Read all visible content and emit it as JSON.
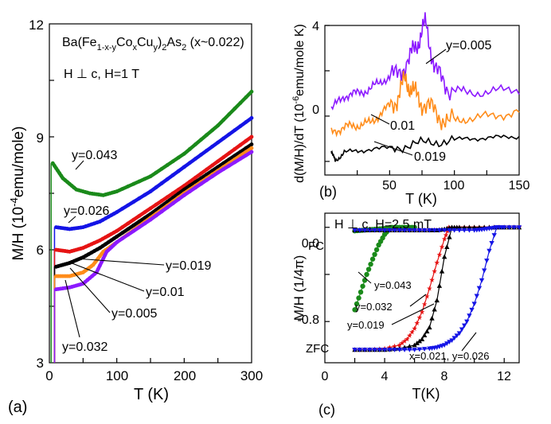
{
  "colors": {
    "green": "#1a8a1a",
    "blue": "#1414e6",
    "red": "#e61414",
    "black": "#000000",
    "orange": "#ff8c1a",
    "purple": "#8c1aff"
  },
  "panel_a": {
    "tag": "(a)",
    "title_text": {
      "base": "Ba(Fe",
      "sub1": "1-x-y",
      "co": "Co",
      "sub2": "x",
      "cu": "Cu",
      "sub3": "y",
      "tail": ")",
      "sub4": "2",
      "as": "As",
      "sub5": "2",
      "rest": " (x~0.022)"
    },
    "field_text": "H ⊥ c, H=1 T",
    "xlabel": "T (K)",
    "ylabel": {
      "pre": "M/H  (10",
      "sup": "-4",
      "post": "emu/mole)"
    },
    "labels": [
      "y=0.043",
      "y=0.026",
      "y=0.019",
      "y=0.01",
      "y=0.005",
      "y=0.032"
    ]
  },
  "panel_b": {
    "tag": "(b)",
    "xlabel": "T (K)",
    "ylabel": {
      "pre": "d(M/H)/dT  (10",
      "sup": "-6",
      "post": "emu/mole K)"
    },
    "labels": [
      "y=0.005",
      "0.01",
      "0.019"
    ]
  },
  "panel_c": {
    "tag": "(c)",
    "title": "H ⊥ c, H=2.5 mT",
    "xlabel": "T(K)",
    "ylabel": "M/H  (1/4π)",
    "fc": "FC",
    "zfc": "ZFC",
    "labels": [
      "y=0.043",
      "y=0.032",
      "y=0.019",
      "x=0.021, y=0.026"
    ]
  },
  "chart_data": [
    {
      "type": "line",
      "xlabel": "T (K)",
      "ylabel": "M/H (10^-4 emu/mole)",
      "xlim": [
        0,
        300
      ],
      "ylim": [
        3,
        12
      ],
      "xticks": [
        0,
        100,
        200,
        300
      ],
      "yticks": [
        3,
        6,
        9,
        12
      ],
      "series": [
        {
          "name": "y=0.043",
          "color": "green",
          "x": [
            5,
            20,
            40,
            60,
            80,
            100,
            150,
            200,
            250,
            300
          ],
          "y": [
            8.3,
            7.9,
            7.6,
            7.5,
            7.45,
            7.55,
            7.95,
            8.55,
            9.3,
            10.2
          ]
        },
        {
          "name": "y=0.026",
          "color": "blue",
          "x": [
            10,
            30,
            50,
            75,
            100,
            150,
            200,
            250,
            300
          ],
          "y": [
            6.6,
            6.55,
            6.6,
            6.75,
            7.0,
            7.55,
            8.2,
            8.85,
            9.5
          ]
        },
        {
          "name": "y=0.01",
          "color": "red",
          "x": [
            10,
            30,
            50,
            75,
            100,
            150,
            200,
            250,
            300
          ],
          "y": [
            6.0,
            5.95,
            6.05,
            6.25,
            6.5,
            7.1,
            7.7,
            8.35,
            9.0
          ]
        },
        {
          "name": "y=0.019",
          "color": "black",
          "x": [
            10,
            30,
            50,
            75,
            100,
            150,
            200,
            250,
            300
          ],
          "y": [
            5.55,
            5.65,
            5.8,
            6.05,
            6.35,
            6.95,
            7.6,
            8.2,
            8.8
          ]
        },
        {
          "name": "y=0.005",
          "color": "orange",
          "x": [
            10,
            30,
            50,
            65,
            80,
            100,
            150,
            200,
            250,
            300
          ],
          "y": [
            5.3,
            5.3,
            5.4,
            5.6,
            5.95,
            6.2,
            6.85,
            7.5,
            8.1,
            8.7
          ]
        },
        {
          "name": "y=0.032",
          "color": "purple",
          "x": [
            10,
            30,
            50,
            70,
            85,
            100,
            150,
            200,
            250,
            300
          ],
          "y": [
            4.95,
            5.0,
            5.1,
            5.4,
            5.95,
            6.2,
            6.8,
            7.45,
            8.05,
            8.6
          ]
        }
      ]
    },
    {
      "type": "line",
      "xlabel": "T (K)",
      "ylabel": "d(M/H)/dT (10^-6 emu/mole K)",
      "xlim": [
        0,
        150
      ],
      "ylim": [
        -2.6,
        4
      ],
      "xticks": [
        50,
        100,
        150
      ],
      "yticks": [
        0,
        4
      ],
      "series": [
        {
          "name": "y=0.005",
          "color": "purple",
          "x": [
            5,
            15,
            25,
            35,
            45,
            55,
            65,
            72,
            78,
            85,
            95,
            110,
            130,
            150
          ],
          "y": [
            0.3,
            0.9,
            1.0,
            1.2,
            1.6,
            1.8,
            2.5,
            3.3,
            4.1,
            2.0,
            1.3,
            1.0,
            1.1,
            1.2
          ]
        },
        {
          "name": "0.01",
          "color": "orange",
          "x": [
            5,
            15,
            25,
            35,
            45,
            55,
            62,
            68,
            75,
            85,
            95,
            110,
            130,
            150
          ],
          "y": [
            -0.7,
            -0.5,
            -0.4,
            -0.3,
            0.2,
            0.7,
            1.6,
            1.1,
            0.6,
            0.2,
            -0.3,
            -0.1,
            0.0,
            0.2
          ]
        },
        {
          "name": "0.019",
          "color": "black",
          "x": [
            5,
            8,
            15,
            30,
            50,
            70,
            90,
            110,
            130,
            150
          ],
          "y": [
            -1.5,
            -2.0,
            -1.6,
            -1.5,
            -1.4,
            -1.25,
            -1.1,
            -1.0,
            -0.95,
            -0.9
          ]
        }
      ]
    },
    {
      "type": "scatter",
      "xlabel": "T(K)",
      "ylabel": "M/H (1/4π)",
      "xlim": [
        0,
        13
      ],
      "ylim": [
        -1.15,
        0.12
      ],
      "xticks": [
        0,
        4,
        8,
        12
      ],
      "yticks": [
        0.0,
        -0.8
      ],
      "series": [
        {
          "name": "FC y=0.043",
          "color": "green",
          "marker": "circle",
          "x": [
            2,
            2.5,
            3,
            3.5,
            4,
            4.5,
            5,
            5.5,
            6
          ],
          "y": [
            -0.03,
            -0.025,
            -0.02,
            -0.015,
            -0.01,
            0.0,
            0.0,
            0.0,
            0.0
          ]
        },
        {
          "name": "ZFC y=0.043",
          "color": "green",
          "marker": "circle",
          "x": [
            2,
            2.4,
            2.8,
            3.2,
            3.6,
            4.0,
            4.4
          ],
          "y": [
            -0.7,
            -0.55,
            -0.4,
            -0.27,
            -0.15,
            -0.06,
            0.0
          ]
        },
        {
          "name": "FC y=0.032",
          "color": "red",
          "marker": "star",
          "x": [
            2,
            3,
            4,
            5,
            6,
            7,
            8,
            8.5,
            9,
            10,
            11,
            12,
            13
          ],
          "y": [
            -0.025,
            -0.025,
            -0.025,
            -0.025,
            -0.025,
            -0.025,
            -0.02,
            -0.005,
            0.0,
            0.0,
            0.0,
            0.0,
            0.0
          ]
        },
        {
          "name": "ZFC y=0.032",
          "color": "red",
          "marker": "star",
          "x": [
            2,
            3,
            4,
            5,
            5.5,
            6,
            6.5,
            7,
            7.5,
            8,
            8.3
          ],
          "y": [
            -1.04,
            -1.04,
            -1.03,
            -1.0,
            -0.95,
            -0.86,
            -0.72,
            -0.52,
            -0.3,
            -0.1,
            0.0
          ]
        },
        {
          "name": "FC y=0.019",
          "color": "black",
          "marker": "triangle",
          "x": [
            2,
            3,
            4,
            5,
            6,
            7,
            7.5,
            8,
            8.5,
            9,
            10,
            11,
            12,
            13
          ],
          "y": [
            -0.025,
            -0.025,
            -0.025,
            -0.025,
            -0.025,
            -0.025,
            -0.025,
            -0.015,
            0.0,
            0.0,
            0.0,
            0.0,
            0.0,
            0.0
          ]
        },
        {
          "name": "ZFC y=0.019",
          "color": "black",
          "marker": "triangle",
          "x": [
            2,
            3,
            4,
            5,
            6,
            6.5,
            7,
            7.5,
            8,
            8.5
          ],
          "y": [
            -1.04,
            -1.04,
            -1.04,
            -1.03,
            -1.0,
            -0.95,
            -0.85,
            -0.62,
            -0.25,
            0.0
          ]
        },
        {
          "name": "FC x=0.021, y=0.026",
          "color": "blue",
          "marker": "triangle-down",
          "x": [
            2,
            3,
            4,
            5,
            6,
            7,
            8,
            9,
            10,
            10.5,
            11,
            11.5,
            12,
            13
          ],
          "y": [
            -0.025,
            -0.025,
            -0.025,
            -0.025,
            -0.025,
            -0.025,
            -0.025,
            -0.025,
            -0.025,
            -0.02,
            -0.01,
            0.0,
            0.0,
            0.0
          ]
        },
        {
          "name": "ZFC x=0.021, y=0.026",
          "color": "blue",
          "marker": "triangle-down",
          "x": [
            2,
            3,
            4,
            5,
            6,
            7,
            7.5,
            8,
            8.5,
            9,
            9.5,
            10,
            10.5,
            11,
            11.5
          ],
          "y": [
            -1.04,
            -1.04,
            -1.04,
            -1.04,
            -1.04,
            -1.03,
            -1.02,
            -1.0,
            -0.96,
            -0.9,
            -0.8,
            -0.65,
            -0.45,
            -0.2,
            0.0
          ]
        }
      ]
    }
  ]
}
